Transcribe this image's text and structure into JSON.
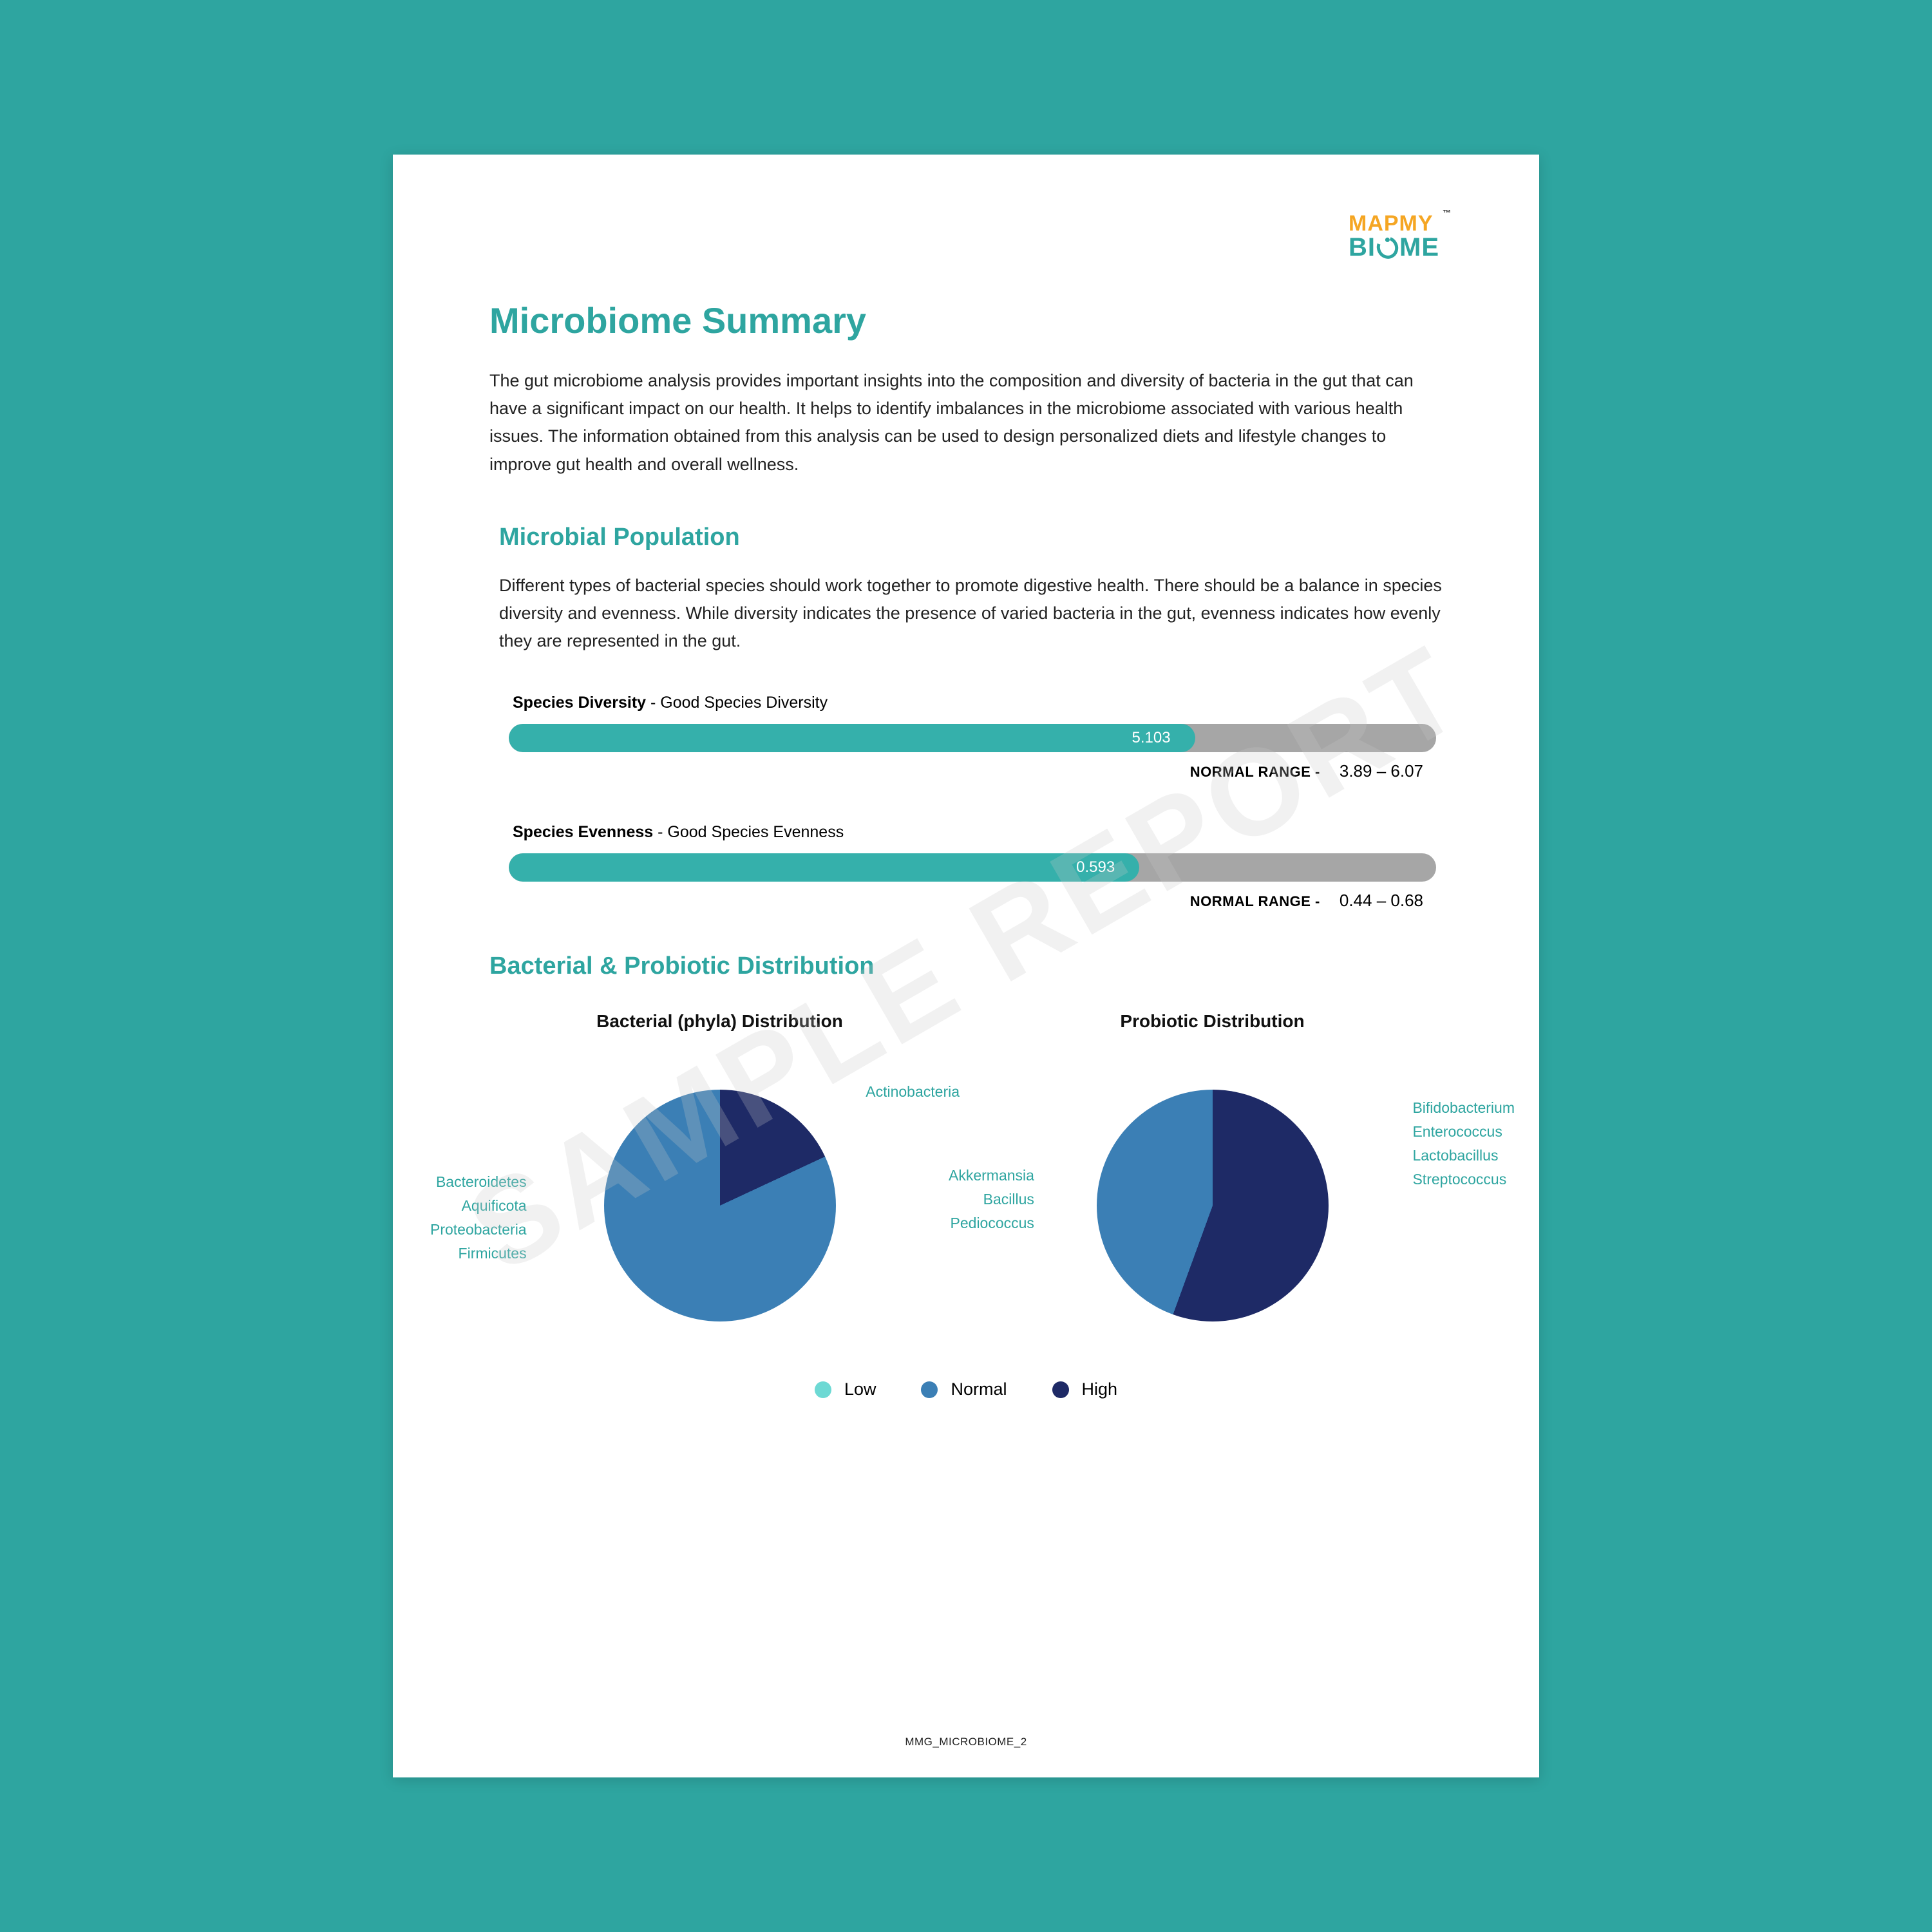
{
  "brand": {
    "logo_line1": "MAPMY",
    "logo_line2_prefix": "BI",
    "logo_line2_suffix": "ME",
    "tm": "™",
    "color_line1": "#f5a623",
    "color_line2": "#2ea5a0"
  },
  "watermark": "SAMPLE REPORT",
  "title": "Microbiome Summary",
  "intro": "The gut microbiome analysis provides important insights into the composition and diversity of bacteria in the gut that can have a significant impact on our health. It helps to identify imbalances in the microbiome associated with various health issues. The information obtained from this analysis can be used to design personalized diets and lifestyle changes to improve gut health and overall wellness.",
  "colors": {
    "teal": "#2ea5a0",
    "teal_title": "#2ea5a0",
    "bar_track": "#a6a6a6",
    "bar_fill": "#35b0ab",
    "low": "#6dd9d4",
    "normal": "#3b7fb5",
    "high": "#1e2a66"
  },
  "population": {
    "heading": "Microbial Population",
    "text": "Different types of bacterial species should work together to promote digestive health. There should be a balance in species diversity and evenness. While diversity indicates the presence of varied bacteria in the gut, evenness indicates how evenly they are represented in the gut.",
    "metrics": [
      {
        "name": "Species Diversity",
        "status": "Good Species Diversity",
        "value": "5.103",
        "range_label": "NORMAL RANGE -",
        "range_value": "3.89 – 6.07",
        "fill_pct": 74
      },
      {
        "name": "Species Evenness",
        "status": "Good Species Evenness",
        "value": "0.593",
        "range_label": "NORMAL RANGE -",
        "range_value": "0.44 – 0.68",
        "fill_pct": 68
      }
    ]
  },
  "distribution": {
    "heading": "Bacterial & Probiotic Distribution",
    "chart1": {
      "title": "Bacterial (phyla) Distribution",
      "type": "pie",
      "slices": [
        {
          "start": -30,
          "end": 65,
          "color": "#1e2a66"
        },
        {
          "start": 65,
          "end": 330,
          "color": "#3b7fb5"
        }
      ],
      "label_right": {
        "text": "Actinobacteria",
        "color": "#2ea5a0"
      },
      "label_left": {
        "lines": [
          "Bacteroidetes",
          "Aquificota",
          "Proteobacteria",
          "Firmicutes"
        ],
        "color": "#2ea5a0"
      }
    },
    "chart2": {
      "title": "Probiotic Distribution",
      "type": "pie",
      "slices": [
        {
          "start": 20,
          "end": 200,
          "color": "#1e2a66"
        },
        {
          "start": 200,
          "end": 380,
          "color": "#3b7fb5"
        }
      ],
      "label_right": {
        "lines": [
          "Bifidobacterium",
          "Enterococcus",
          "Lactobacillus",
          "Streptococcus"
        ],
        "color": "#2ea5a0"
      },
      "label_left": {
        "lines": [
          "Akkermansia",
          "Bacillus",
          "Pediococcus"
        ],
        "color": "#2ea5a0"
      }
    },
    "legend": [
      {
        "label": "Low",
        "color_key": "low"
      },
      {
        "label": "Normal",
        "color_key": "normal"
      },
      {
        "label": "High",
        "color_key": "high"
      }
    ]
  },
  "footer": "MMG_MICROBIOME_2"
}
